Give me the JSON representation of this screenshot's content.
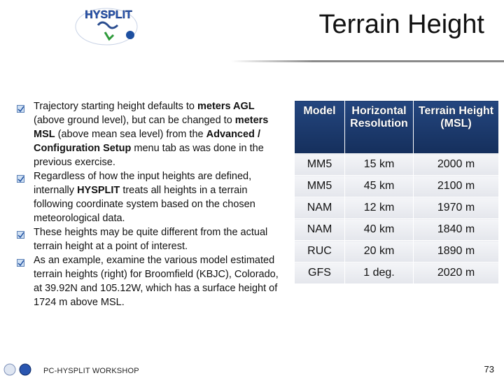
{
  "header": {
    "logo": "HYSPLIT",
    "title": "Terrain Height"
  },
  "bullets": [
    [
      "Trajectory starting height defaults to ",
      {
        "text": "meters AGL",
        "bold": true
      },
      " (above ground level), but can be changed to ",
      {
        "text": "meters MSL",
        "bold": true
      },
      " (above mean sea level) from the ",
      {
        "text": "Advanced / Configuration Setup",
        "bold": true
      },
      " menu tab as was done in the previous exercise."
    ],
    [
      "Regardless of how the input heights are defined, internally ",
      {
        "text": "HYSPLIT",
        "bold": true
      },
      " treats all heights in a terrain following coordinate system based on the chosen meteorological data."
    ],
    [
      "These heights may be quite different from the actual terrain height at a point of interest."
    ],
    [
      "As an example, examine the various model estimated terrain heights (right) for Broomfield (KBJC), Colorado, at 39.92N and 105.12W, which has a surface height of 1724 m  above MSL."
    ]
  ],
  "table": {
    "columns": [
      "Model",
      "Horizontal Resolution",
      "Terrain Height (MSL)"
    ],
    "rows": [
      [
        "MM5",
        "15 km",
        "2000 m"
      ],
      [
        "MM5",
        "45 km",
        "2100 m"
      ],
      [
        "NAM",
        "12 km",
        "1970 m"
      ],
      [
        "NAM",
        "40 km",
        "1840 m"
      ],
      [
        "RUC",
        "20 km",
        "1890 m"
      ],
      [
        "GFS",
        "1 deg.",
        "2020 m"
      ]
    ]
  },
  "footer": {
    "text": "PC-HYSPLIT WORKSHOP",
    "page": "73"
  }
}
